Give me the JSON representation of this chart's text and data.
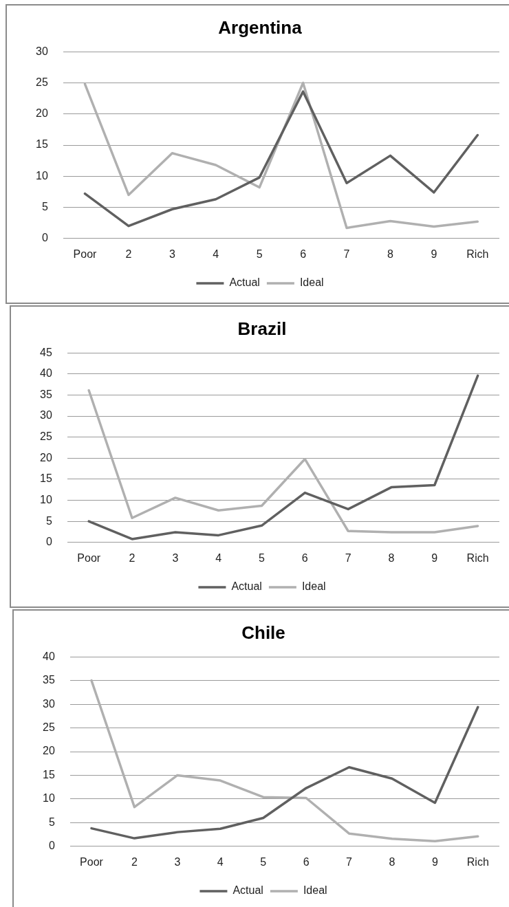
{
  "chart_data": [
    {
      "type": "line",
      "title": "Argentina",
      "categories": [
        "Poor",
        "2",
        "3",
        "4",
        "5",
        "6",
        "7",
        "8",
        "9",
        "Rich"
      ],
      "series": [
        {
          "name": "Actual",
          "color": "#606060",
          "values": [
            7.2,
            2.0,
            4.7,
            6.3,
            9.8,
            23.6,
            8.9,
            13.3,
            7.4,
            16.6
          ]
        },
        {
          "name": "Ideal",
          "color": "#b0b0b0",
          "values": [
            24.8,
            7.0,
            13.7,
            11.8,
            8.2,
            25.0,
            1.7,
            2.8,
            1.9,
            2.7
          ]
        }
      ],
      "ylim": [
        0,
        30
      ],
      "yticks": [
        0,
        5,
        10,
        15,
        20,
        25,
        30
      ],
      "grid": "y",
      "legend": "bottom",
      "marker": "none",
      "line_style": "solid"
    },
    {
      "type": "line",
      "title": "Brazil",
      "categories": [
        "Poor",
        "2",
        "3",
        "4",
        "5",
        "6",
        "7",
        "8",
        "9",
        "Rich"
      ],
      "series": [
        {
          "name": "Actual",
          "color": "#606060",
          "values": [
            5.0,
            0.8,
            2.4,
            1.7,
            4.0,
            11.8,
            7.9,
            13.1,
            13.6,
            39.6
          ]
        },
        {
          "name": "Ideal",
          "color": "#b0b0b0",
          "values": [
            36.1,
            5.8,
            10.6,
            7.6,
            8.7,
            19.8,
            2.7,
            2.4,
            2.4,
            3.9
          ]
        }
      ],
      "ylim": [
        0,
        45
      ],
      "yticks": [
        0,
        5,
        10,
        15,
        20,
        25,
        30,
        35,
        40,
        45
      ],
      "grid": "y",
      "legend": "bottom",
      "marker": "none",
      "line_style": "solid"
    },
    {
      "type": "line",
      "title": "Chile",
      "categories": [
        "Poor",
        "2",
        "3",
        "4",
        "5",
        "6",
        "7",
        "8",
        "9",
        "Rich"
      ],
      "series": [
        {
          "name": "Actual",
          "color": "#606060",
          "values": [
            3.8,
            1.7,
            3.0,
            3.7,
            6.0,
            12.3,
            16.7,
            14.3,
            9.2,
            29.4
          ]
        },
        {
          "name": "Ideal",
          "color": "#b0b0b0",
          "values": [
            35.0,
            8.3,
            15.0,
            13.9,
            10.4,
            10.2,
            2.7,
            1.6,
            1.1,
            2.1
          ]
        }
      ],
      "ylim": [
        0,
        40
      ],
      "yticks": [
        0,
        5,
        10,
        15,
        20,
        25,
        30,
        35,
        40
      ],
      "grid": "y",
      "legend": "bottom",
      "marker": "none",
      "line_style": "solid"
    }
  ]
}
